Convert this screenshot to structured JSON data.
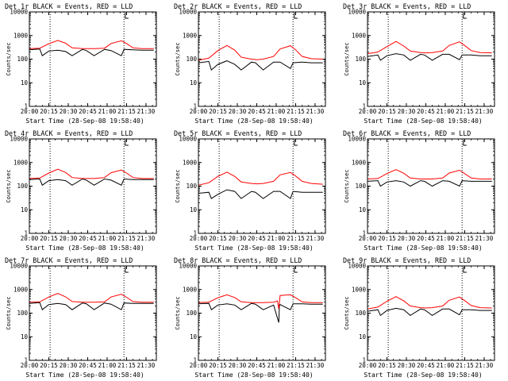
{
  "colors": {
    "events": "#000000",
    "lld": "#ff0000",
    "axes": "#000000",
    "background": "#ffffff"
  },
  "chart_data": [
    {
      "type": "line",
      "title": "Det 1r BLACK = Events, RED = LLD",
      "xlabel": "Start Time (28-Sep-08 19:58:40)",
      "ylabel": "Counts/sec",
      "yscale": "log",
      "ylim": [
        1,
        10000
      ],
      "x_tick_labels": [
        "20:00",
        "20:15",
        "20:30",
        "20:45",
        "21:00",
        "21:15",
        "21:30"
      ],
      "y_tick_labels": [
        "1",
        "10",
        "100",
        "1000",
        "10000"
      ],
      "series": [
        {
          "name": "BLACK = Events",
          "x": [
            "20:00",
            "20:08",
            "20:10",
            "20:15",
            "20:22",
            "20:28",
            "20:33",
            "20:41",
            "20:44",
            "20:50",
            "20:58",
            "21:03",
            "21:11",
            "21:13",
            "21:20",
            "21:27",
            "21:36"
          ],
          "y": [
            250,
            270,
            140,
            220,
            240,
            210,
            140,
            260,
            230,
            140,
            260,
            230,
            140,
            260,
            250,
            240,
            240
          ]
        },
        {
          "name": "RED = LLD",
          "x": [
            "20:00",
            "20:08",
            "20:15",
            "20:22",
            "20:28",
            "20:33",
            "20:41",
            "20:45",
            "20:50",
            "20:58",
            "21:03",
            "21:11",
            "21:15",
            "21:20",
            "21:27",
            "21:36"
          ],
          "y": [
            280,
            290,
            450,
            620,
            470,
            300,
            280,
            280,
            280,
            290,
            460,
            600,
            460,
            300,
            280,
            280
          ]
        }
      ]
    },
    {
      "type": "line",
      "title": "Det 2r BLACK = Events, RED = LLD",
      "xlabel": "Start Time (28-Sep-08 19:58:40)",
      "ylabel": "Counts/sec",
      "yscale": "log",
      "ylim": [
        1,
        10000
      ],
      "x_tick_labels": [
        "20:00",
        "20:15",
        "20:30",
        "20:45",
        "21:00",
        "21:15",
        "21:30"
      ],
      "y_tick_labels": [
        "1",
        "10",
        "100",
        "1000",
        "10000"
      ],
      "series": [
        {
          "name": "BLACK = Events",
          "x": [
            "20:00",
            "20:08",
            "20:10",
            "20:15",
            "20:22",
            "20:28",
            "20:33",
            "20:41",
            "20:44",
            "20:50",
            "20:58",
            "21:03",
            "21:11",
            "21:13",
            "21:20",
            "21:27",
            "21:36"
          ],
          "y": [
            70,
            80,
            35,
            60,
            85,
            60,
            35,
            75,
            70,
            35,
            75,
            75,
            40,
            70,
            75,
            70,
            70
          ]
        },
        {
          "name": "RED = LLD",
          "x": [
            "20:00",
            "20:08",
            "20:15",
            "20:22",
            "20:28",
            "20:33",
            "20:41",
            "20:45",
            "20:50",
            "20:58",
            "21:03",
            "21:11",
            "21:15",
            "21:20",
            "21:27",
            "21:36"
          ],
          "y": [
            90,
            110,
            230,
            380,
            240,
            120,
            100,
            95,
            100,
            130,
            270,
            370,
            250,
            130,
            105,
            100
          ]
        }
      ]
    },
    {
      "type": "line",
      "title": "Det 3r BLACK = Events, RED = LLD",
      "xlabel": "Start Time (28-Sep-08 19:58:40)",
      "ylabel": "Counts/sec",
      "yscale": "log",
      "ylim": [
        1,
        10000
      ],
      "x_tick_labels": [
        "20:00",
        "20:15",
        "20:30",
        "20:45",
        "21:00",
        "21:15",
        "21:30"
      ],
      "y_tick_labels": [
        "1",
        "10",
        "100",
        "1000",
        "10000"
      ],
      "series": [
        {
          "name": "BLACK = Events",
          "x": [
            "20:00",
            "20:08",
            "20:10",
            "20:15",
            "20:22",
            "20:28",
            "20:33",
            "20:41",
            "20:44",
            "20:50",
            "20:58",
            "21:03",
            "21:11",
            "21:13",
            "21:20",
            "21:27",
            "21:36"
          ],
          "y": [
            130,
            150,
            90,
            140,
            170,
            150,
            90,
            160,
            150,
            90,
            160,
            160,
            95,
            150,
            150,
            140,
            140
          ]
        },
        {
          "name": "RED = LLD",
          "x": [
            "20:00",
            "20:08",
            "20:15",
            "20:22",
            "20:28",
            "20:33",
            "20:41",
            "20:45",
            "20:50",
            "20:58",
            "21:03",
            "21:11",
            "21:15",
            "21:20",
            "21:27",
            "21:36"
          ],
          "y": [
            170,
            200,
            340,
            560,
            360,
            220,
            190,
            185,
            190,
            220,
            380,
            540,
            380,
            230,
            190,
            185
          ]
        }
      ]
    },
    {
      "type": "line",
      "title": "Det 4r BLACK = Events, RED = LLD",
      "xlabel": "Start Time (28-Sep-08 19:58:40)",
      "ylabel": "Counts/sec",
      "yscale": "log",
      "ylim": [
        1,
        10000
      ],
      "x_tick_labels": [
        "20:00",
        "20:15",
        "20:30",
        "20:45",
        "21:00",
        "21:15",
        "21:30"
      ],
      "y_tick_labels": [
        "1",
        "10",
        "100",
        "1000",
        "10000"
      ],
      "series": [
        {
          "name": "BLACK = Events",
          "x": [
            "20:00",
            "20:08",
            "20:10",
            "20:15",
            "20:22",
            "20:28",
            "20:33",
            "20:41",
            "20:44",
            "20:50",
            "20:58",
            "21:03",
            "21:11",
            "21:13",
            "21:20",
            "21:27",
            "21:36"
          ],
          "y": [
            190,
            200,
            110,
            170,
            190,
            170,
            110,
            200,
            180,
            110,
            200,
            180,
            110,
            200,
            190,
            190,
            190
          ]
        },
        {
          "name": "RED = LLD",
          "x": [
            "20:00",
            "20:08",
            "20:15",
            "20:22",
            "20:28",
            "20:33",
            "20:41",
            "20:45",
            "20:50",
            "20:58",
            "21:03",
            "21:11",
            "21:15",
            "21:20",
            "21:27",
            "21:36"
          ],
          "y": [
            210,
            220,
            360,
            520,
            380,
            230,
            210,
            210,
            210,
            230,
            370,
            480,
            360,
            230,
            210,
            210
          ]
        }
      ]
    },
    {
      "type": "line",
      "title": "Det 5r BLACK = Events, RED = LLD",
      "xlabel": "Start Time (28-Sep-08 19:58:40)",
      "ylabel": "Counts/sec",
      "yscale": "log",
      "ylim": [
        1,
        10000
      ],
      "x_tick_labels": [
        "20:00",
        "20:15",
        "20:30",
        "20:45",
        "21:00",
        "21:15",
        "21:30"
      ],
      "y_tick_labels": [
        "1",
        "10",
        "100",
        "1000",
        "10000"
      ],
      "series": [
        {
          "name": "BLACK = Events",
          "x": [
            "20:00",
            "20:08",
            "20:10",
            "20:15",
            "20:22",
            "20:28",
            "20:33",
            "20:41",
            "20:44",
            "20:50",
            "20:58",
            "21:03",
            "21:11",
            "21:13",
            "21:20",
            "21:27",
            "21:36"
          ],
          "y": [
            50,
            55,
            30,
            45,
            70,
            60,
            30,
            60,
            55,
            30,
            60,
            60,
            30,
            60,
            55,
            55,
            55
          ]
        },
        {
          "name": "RED = LLD",
          "x": [
            "20:00",
            "20:08",
            "20:15",
            "20:22",
            "20:28",
            "20:33",
            "20:41",
            "20:45",
            "20:50",
            "20:58",
            "21:03",
            "21:11",
            "21:15",
            "21:20",
            "21:27",
            "21:36"
          ],
          "y": [
            110,
            140,
            260,
            390,
            260,
            150,
            130,
            125,
            130,
            160,
            300,
            380,
            270,
            160,
            130,
            120
          ]
        }
      ]
    },
    {
      "type": "line",
      "title": "Det 6r BLACK = Events, RED = LLD",
      "xlabel": "Start Time (28-Sep-08 19:58:40)",
      "ylabel": "Counts/sec",
      "yscale": "log",
      "ylim": [
        1,
        10000
      ],
      "x_tick_labels": [
        "20:00",
        "20:15",
        "20:30",
        "20:45",
        "21:00",
        "21:15",
        "21:30"
      ],
      "y_tick_labels": [
        "1",
        "10",
        "100",
        "1000",
        "10000"
      ],
      "series": [
        {
          "name": "BLACK = Events",
          "x": [
            "20:00",
            "20:08",
            "20:10",
            "20:15",
            "20:22",
            "20:28",
            "20:33",
            "20:41",
            "20:44",
            "20:50",
            "20:58",
            "21:03",
            "21:11",
            "21:13",
            "21:20",
            "21:27",
            "21:36"
          ],
          "y": [
            160,
            170,
            100,
            150,
            170,
            150,
            100,
            170,
            160,
            100,
            170,
            160,
            100,
            170,
            160,
            160,
            160
          ]
        },
        {
          "name": "RED = LLD",
          "x": [
            "20:00",
            "20:08",
            "20:15",
            "20:22",
            "20:28",
            "20:33",
            "20:41",
            "20:45",
            "20:50",
            "20:58",
            "21:03",
            "21:11",
            "21:15",
            "21:20",
            "21:27",
            "21:36"
          ],
          "y": [
            200,
            210,
            340,
            500,
            350,
            220,
            200,
            200,
            200,
            220,
            360,
            470,
            340,
            220,
            200,
            200
          ]
        }
      ]
    },
    {
      "type": "line",
      "title": "Det 7r BLACK = Events, RED = LLD",
      "xlabel": "Start Time (28-Sep-08 19:58:40)",
      "ylabel": "Counts/sec",
      "yscale": "log",
      "ylim": [
        1,
        10000
      ],
      "x_tick_labels": [
        "20:00",
        "20:15",
        "20:30",
        "20:45",
        "21:00",
        "21:15",
        "21:30"
      ],
      "y_tick_labels": [
        "1",
        "10",
        "100",
        "1000",
        "10000"
      ],
      "series": [
        {
          "name": "BLACK = Events",
          "x": [
            "20:00",
            "20:08",
            "20:10",
            "20:15",
            "20:22",
            "20:28",
            "20:33",
            "20:41",
            "20:44",
            "20:50",
            "20:58",
            "21:03",
            "21:11",
            "21:13",
            "21:20",
            "21:27",
            "21:36"
          ],
          "y": [
            260,
            280,
            140,
            230,
            260,
            230,
            140,
            270,
            250,
            140,
            270,
            240,
            140,
            270,
            260,
            260,
            260
          ]
        },
        {
          "name": "RED = LLD",
          "x": [
            "20:00",
            "20:08",
            "20:15",
            "20:22",
            "20:28",
            "20:33",
            "20:41",
            "20:45",
            "20:50",
            "20:58",
            "21:03",
            "21:11",
            "21:15",
            "21:20",
            "21:27",
            "21:36"
          ],
          "y": [
            290,
            300,
            480,
            680,
            490,
            310,
            290,
            290,
            290,
            300,
            480,
            630,
            470,
            310,
            290,
            290
          ]
        }
      ]
    },
    {
      "type": "line",
      "title": "Det 8r BLACK = Events, RED = LLD",
      "xlabel": "Start Time (28-Sep-08 19:58:40)",
      "ylabel": "Counts/sec",
      "yscale": "log",
      "ylim": [
        1,
        10000
      ],
      "x_tick_labels": [
        "20:00",
        "20:15",
        "20:30",
        "20:45",
        "21:00",
        "21:15",
        "21:30"
      ],
      "y_tick_labels": [
        "1",
        "10",
        "100",
        "1000",
        "10000"
      ],
      "series": [
        {
          "name": "BLACK = Events",
          "x": [
            "20:00",
            "20:08",
            "20:10",
            "20:15",
            "20:22",
            "20:28",
            "20:33",
            "20:41",
            "20:44",
            "20:50",
            "20:58",
            "21:02",
            "21:02.5",
            "21:03",
            "21:11",
            "21:13",
            "21:20",
            "21:27",
            "21:36"
          ],
          "y": [
            250,
            260,
            140,
            220,
            250,
            220,
            140,
            260,
            240,
            140,
            220,
            40,
            200,
            230,
            140,
            250,
            250,
            240,
            240
          ]
        },
        {
          "name": "RED = LLD",
          "x": [
            "20:00",
            "20:08",
            "20:15",
            "20:22",
            "20:28",
            "20:33",
            "20:41",
            "20:45",
            "20:50",
            "20:58",
            "21:01",
            "21:02",
            "21:03",
            "21:11",
            "21:15",
            "21:20",
            "21:27",
            "21:36"
          ],
          "y": [
            280,
            290,
            450,
            600,
            460,
            300,
            280,
            280,
            280,
            290,
            330,
            150,
            560,
            600,
            450,
            300,
            280,
            280
          ]
        }
      ]
    },
    {
      "type": "line",
      "title": "Det 9r BLACK = Events, RED = LLD",
      "xlabel": "Start Time (28-Sep-08 19:58:40)",
      "ylabel": "Counts/sec",
      "yscale": "log",
      "ylim": [
        1,
        10000
      ],
      "x_tick_labels": [
        "20:00",
        "20:15",
        "20:30",
        "20:45",
        "21:00",
        "21:15",
        "21:30"
      ],
      "y_tick_labels": [
        "1",
        "10",
        "100",
        "1000",
        "10000"
      ],
      "series": [
        {
          "name": "BLACK = Events",
          "x": [
            "20:00",
            "20:08",
            "20:10",
            "20:15",
            "20:22",
            "20:28",
            "20:33",
            "20:41",
            "20:44",
            "20:50",
            "20:58",
            "21:03",
            "21:11",
            "21:13",
            "21:20",
            "21:27",
            "21:36"
          ],
          "y": [
            120,
            140,
            80,
            130,
            160,
            140,
            80,
            150,
            140,
            80,
            150,
            150,
            85,
            140,
            140,
            130,
            130
          ]
        },
        {
          "name": "RED = LLD",
          "x": [
            "20:00",
            "20:08",
            "20:15",
            "20:22",
            "20:28",
            "20:33",
            "20:41",
            "20:45",
            "20:50",
            "20:58",
            "21:03",
            "21:11",
            "21:15",
            "21:20",
            "21:27",
            "21:36"
          ],
          "y": [
            150,
            180,
            320,
            500,
            330,
            200,
            170,
            165,
            170,
            200,
            350,
            480,
            340,
            210,
            170,
            165
          ]
        }
      ]
    }
  ]
}
